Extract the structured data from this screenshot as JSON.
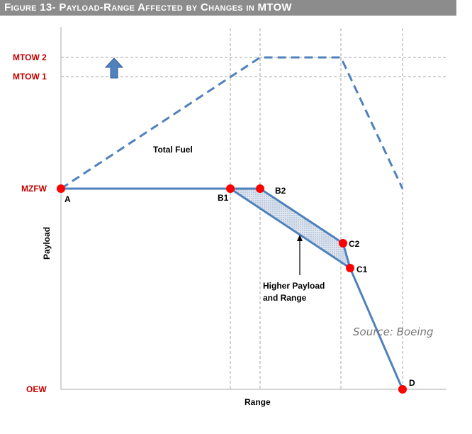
{
  "figure": {
    "title": "Figure 13- Payload-Range Affected by Changes in MTOW"
  },
  "axes": {
    "x_label": "Range",
    "y_label": "Payload",
    "y_levels": {
      "mtow2": "MTOW 2",
      "mtow1": "MTOW 1",
      "mzfw": "MZFW",
      "oew": "OEW"
    }
  },
  "points": {
    "a": "A",
    "b1": "B1",
    "b2": "B2",
    "c1": "C1",
    "c2": "C2",
    "d": "D"
  },
  "annotations": {
    "total_fuel": "Total Fuel",
    "higher_payload_line1": "Higher Payload",
    "higher_payload_line2": "and Range",
    "source": "Source: Boeing"
  },
  "colors": {
    "line_blue": "#4f81bd",
    "point_red": "#ff0000",
    "level_label_red": "#c00000",
    "banner_gray": "#8c8c8c"
  }
}
